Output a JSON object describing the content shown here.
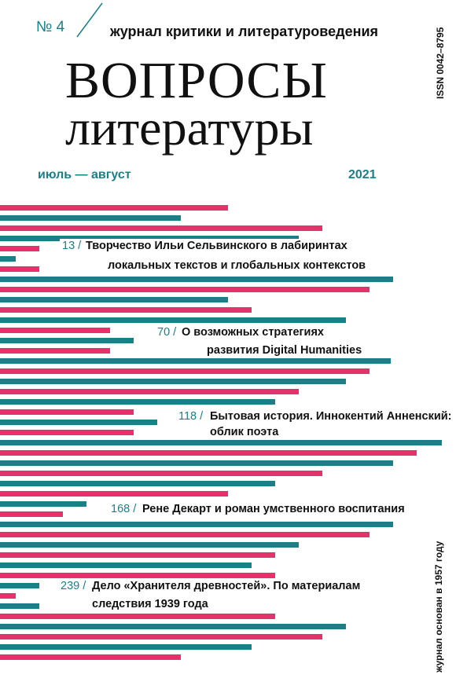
{
  "header": {
    "number": "№ 4",
    "subtitle": "журнал критики и литературоведения",
    "title_line1": "ВОПРОСЫ",
    "title_line2": "литературы",
    "issn": "ISSN 0042–8795",
    "period": "июль — август",
    "year": "2021"
  },
  "articles": [
    {
      "page": "13 /",
      "lines": [
        "Творчество Ильи Сельвинского в лабиринтах",
        "локальных текстов и глобальных контекстов"
      ]
    },
    {
      "page": "70 /",
      "lines": [
        "О возможных стратегиях",
        "развития Digital Humanities"
      ]
    },
    {
      "page": "118 /",
      "lines": [
        "Бытовая история. Иннокентий Анненский:",
        "облик поэта"
      ]
    },
    {
      "page": "168 /",
      "lines": [
        "Рене Декарт и роман умственного воспитания"
      ]
    },
    {
      "page": "239 /",
      "lines": [
        "Дело «Хранителя древностей». По материалам",
        "следствия 1939 года"
      ]
    }
  ],
  "footer_note": "журнал основан в 1957 году"
}
